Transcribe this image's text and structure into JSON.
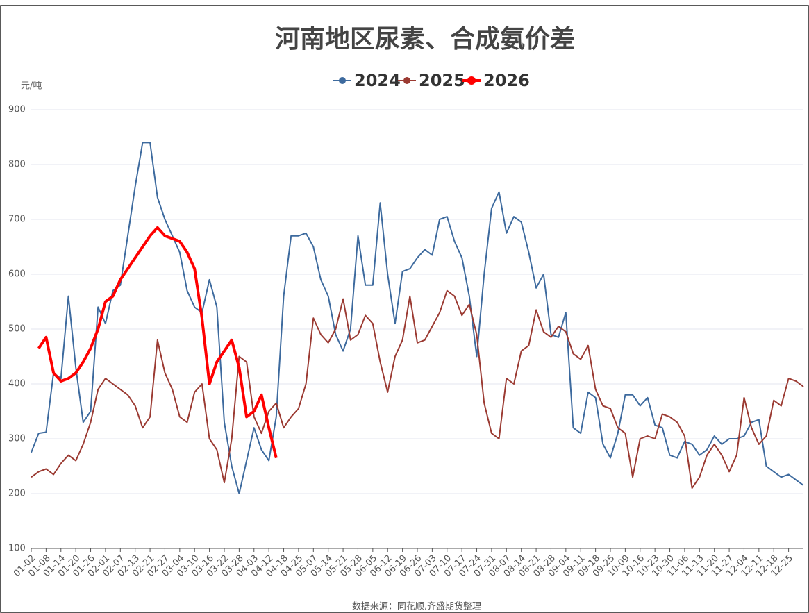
{
  "chart_data": {
    "type": "line",
    "title": "河南地区尿素、合成氨价差",
    "y_label": "元/吨",
    "source": "数据来源：同花顺,齐盛期货整理",
    "ylim": [
      100,
      900
    ],
    "yticks": [
      100,
      200,
      300,
      400,
      500,
      600,
      700,
      800,
      900
    ],
    "grid": true,
    "legend": "top",
    "categories": [
      "01-02",
      null,
      "01-08",
      null,
      "01-14",
      null,
      "01-20",
      null,
      "01-26",
      null,
      "02-01",
      null,
      "02-07",
      null,
      "02-13",
      null,
      "02-21",
      null,
      "02-27",
      null,
      "03-04",
      null,
      "03-10",
      null,
      "03-16",
      null,
      "03-22",
      null,
      "03-28",
      null,
      "04-03",
      null,
      "04-12",
      null,
      "04-18",
      null,
      "04-25",
      null,
      "05-07",
      null,
      "05-14",
      null,
      "05-21",
      null,
      "05-28",
      null,
      "06-05",
      null,
      "06-12",
      null,
      "06-19",
      null,
      "06-26",
      null,
      "07-03",
      null,
      "07-10",
      null,
      "07-17",
      null,
      "07-24",
      null,
      "07-31",
      null,
      "08-07",
      null,
      "08-14",
      null,
      "08-21",
      null,
      "08-28",
      null,
      "09-04",
      null,
      "09-11",
      null,
      "09-18",
      null,
      "09-25",
      null,
      "10-09",
      null,
      "10-16",
      null,
      "10-23",
      null,
      "10-30",
      null,
      "11-06",
      null,
      "11-13",
      null,
      "11-20",
      null,
      "11-27",
      null,
      "12-04",
      null,
      "12-11",
      null,
      "12-18",
      null,
      "12-25",
      null,
      null
    ],
    "series": [
      {
        "name": "2024",
        "color": "#3d6a9e",
        "values": [
          275,
          310,
          312,
          420,
          410,
          560,
          430,
          330,
          350,
          540,
          510,
          570,
          580,
          670,
          760,
          840,
          840,
          740,
          700,
          670,
          640,
          570,
          540,
          530,
          590,
          540,
          330,
          250,
          200,
          260,
          320,
          280,
          260,
          340,
          560,
          670,
          670,
          675,
          650,
          590,
          560,
          490,
          460,
          500,
          670,
          580,
          580,
          730,
          600,
          510,
          605,
          610,
          630,
          645,
          635,
          700,
          705,
          660,
          630,
          560,
          450,
          600,
          720,
          750,
          675,
          705,
          695,
          640,
          575,
          600,
          490,
          485,
          530,
          320,
          310,
          385,
          375,
          290,
          265,
          310,
          380,
          380,
          360,
          375,
          325,
          320,
          270,
          265,
          295,
          290,
          270,
          280,
          305,
          290,
          300,
          300,
          305,
          330,
          335,
          250,
          240,
          230,
          235,
          225,
          215
        ]
      },
      {
        "name": "2025",
        "color": "#9b3a32",
        "values": [
          230,
          240,
          245,
          235,
          255,
          270,
          260,
          290,
          330,
          390,
          410,
          400,
          390,
          380,
          360,
          320,
          340,
          480,
          420,
          390,
          340,
          330,
          385,
          400,
          300,
          280,
          220,
          300,
          450,
          440,
          340,
          310,
          350,
          365,
          320,
          340,
          355,
          400,
          520,
          490,
          475,
          500,
          555,
          480,
          490,
          525,
          510,
          440,
          385,
          450,
          480,
          560,
          475,
          480,
          505,
          530,
          570,
          560,
          525,
          545,
          490,
          365,
          310,
          300,
          410,
          400,
          460,
          470,
          535,
          495,
          485,
          505,
          495,
          455,
          445,
          470,
          390,
          360,
          355,
          320,
          310,
          230,
          300,
          305,
          300,
          345,
          340,
          330,
          305,
          210,
          230,
          270,
          290,
          270,
          240,
          270,
          375,
          320,
          290,
          305,
          370,
          360,
          410,
          405,
          395
        ]
      },
      {
        "name": "2026",
        "color": "#ff0000",
        "values": [
          null,
          465,
          485,
          420,
          405,
          410,
          420,
          440,
          465,
          500,
          550,
          560,
          590,
          610,
          630,
          650,
          670,
          685,
          670,
          665,
          660,
          640,
          610,
          520,
          400,
          440,
          460,
          480,
          430,
          340,
          350,
          380,
          320,
          265,
          null,
          null,
          null,
          null,
          null,
          null,
          null,
          null,
          null,
          null,
          null,
          null,
          null,
          null,
          null,
          null,
          null,
          null,
          null,
          null,
          null,
          null,
          null,
          null,
          null,
          null,
          null,
          null,
          null,
          null,
          null,
          null,
          null,
          null,
          null,
          null,
          null,
          null,
          null,
          null,
          null,
          null,
          null,
          null,
          null,
          null,
          null,
          null,
          null,
          null,
          null,
          null,
          null,
          null,
          null,
          null,
          null,
          null,
          null,
          null,
          null,
          null,
          null,
          null,
          null,
          null,
          null,
          null,
          null,
          null,
          null
        ]
      }
    ]
  }
}
